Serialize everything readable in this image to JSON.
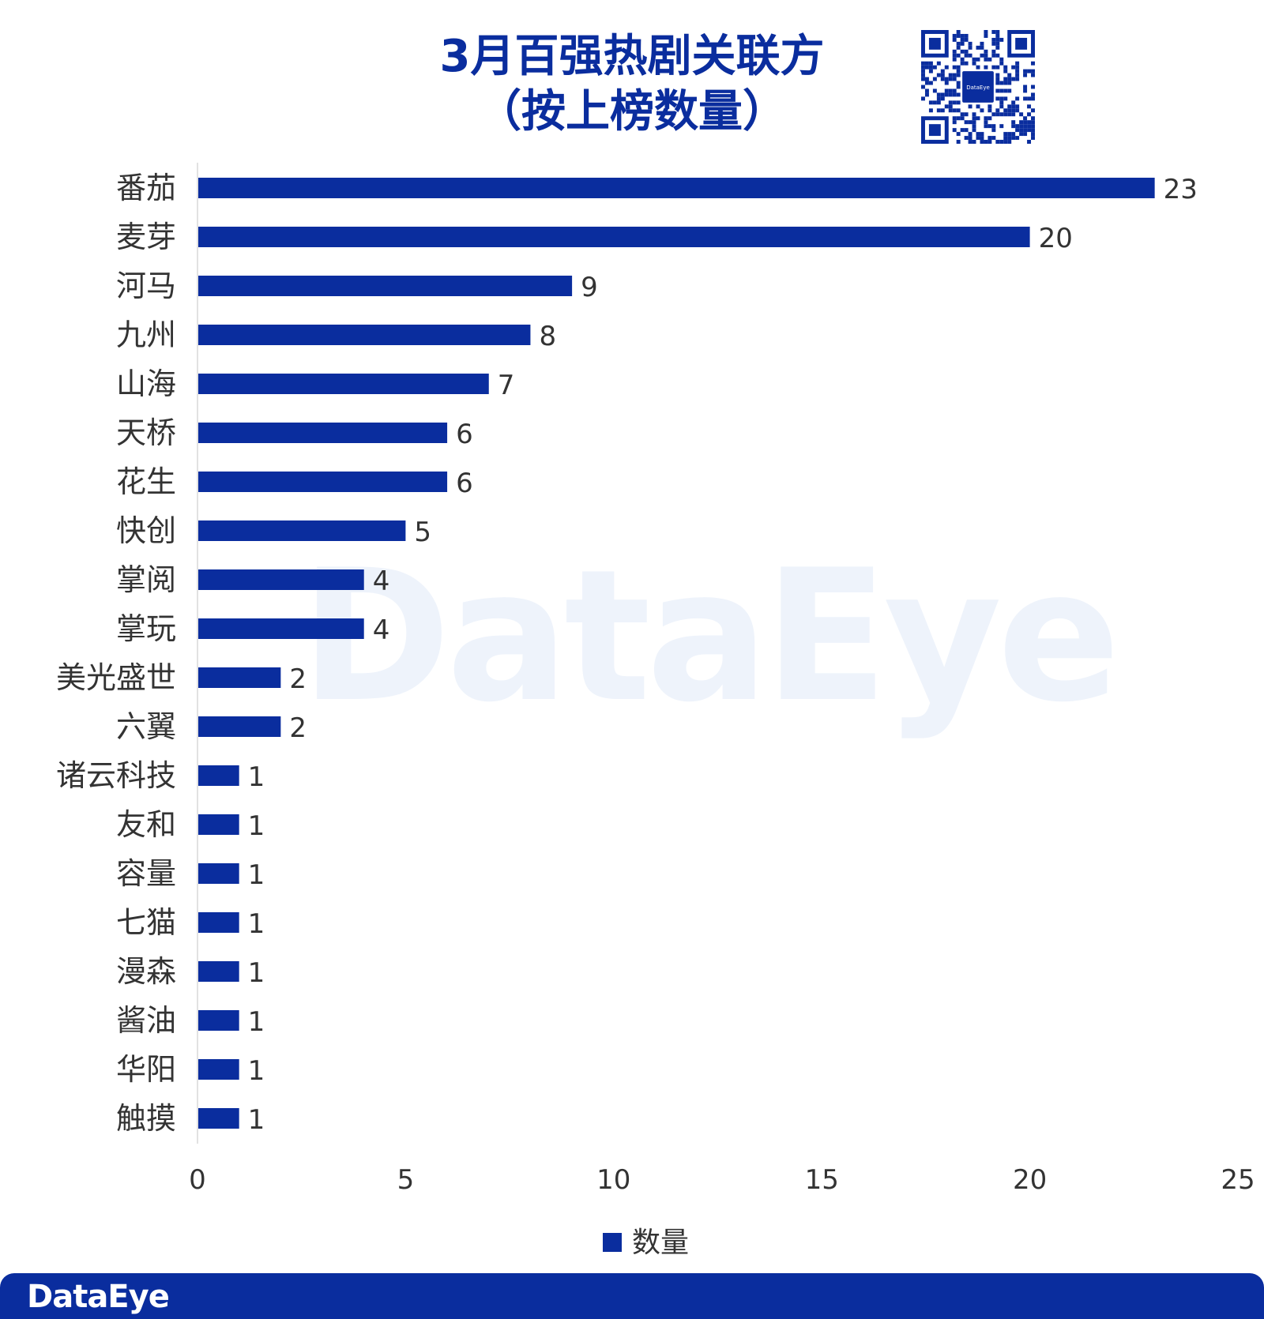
{
  "title_line1": "3月百强热剧关联方",
  "title_line2": "（按上榜数量）",
  "brand": "DataEye",
  "qr_center_text": "DataEye",
  "colors": {
    "bar": "#0a2d9e",
    "title": "#0a2d9e",
    "footer": "#0a2d9e",
    "text": "#333333",
    "axis": "#d9d9d9",
    "watermark": "#eef3fb"
  },
  "chart_data": {
    "type": "bar",
    "orientation": "horizontal",
    "categories": [
      "番茄",
      "麦芽",
      "河马",
      "九州",
      "山海",
      "天桥",
      "花生",
      "快创",
      "掌阅",
      "掌玩",
      "美光盛世",
      "六翼",
      "诸云科技",
      "友和",
      "容量",
      "七猫",
      "漫森",
      "酱油",
      "华阳",
      "触摸"
    ],
    "series": [
      {
        "name": "数量",
        "values": [
          23,
          20,
          9,
          8,
          7,
          6,
          6,
          5,
          4,
          4,
          2,
          2,
          1,
          1,
          1,
          1,
          1,
          1,
          1,
          1
        ]
      }
    ],
    "xlim": [
      0,
      25
    ],
    "xticks": [
      0,
      5,
      10,
      15,
      20,
      25
    ],
    "xlabel": "",
    "ylabel": "",
    "grid": false,
    "data_labels": true,
    "legend": "bottom-center"
  }
}
